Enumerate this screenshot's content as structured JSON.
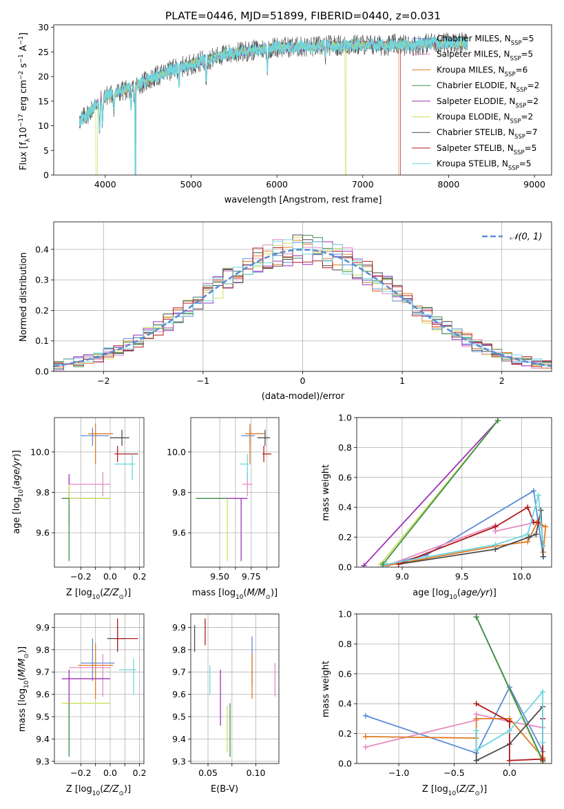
{
  "colors": {
    "Chabrier MILES": "#5b8bd6",
    "Salpeter MILES": "#e68ac0",
    "Kroupa MILES": "#e07b22",
    "Chabrier ELODIE": "#3b8f4a",
    "Salpeter ELODIE": "#9c2fb8",
    "Kroupa ELODIE": "#c9df5a",
    "Chabrier STELIB": "#4b4b4b",
    "Salpeter STELIB": "#b11a1a",
    "Kroupa STELIB": "#6fd6df"
  },
  "chart_data": [
    {
      "id": "spectrum",
      "type": "line",
      "title": "PLATE=0446, MJD=51899, FIBERID=0440, z=0.031",
      "xlabel": "wavelength [Angstrom, rest frame]",
      "ylabel": "Flux [f_λ 10^-17 erg cm^-2 s^-1 A^-1]",
      "xlim": [
        3400,
        9200
      ],
      "ylim": [
        0,
        30.5
      ],
      "xticks": [
        4000,
        5000,
        6000,
        7000,
        8000,
        9000
      ],
      "yticks": [
        0,
        5,
        10,
        15,
        20,
        25,
        30
      ],
      "legend_position": "top-right",
      "legend": [
        "Chabrier MILES, N_SSP=5",
        "Salpeter MILES, N_SSP=5",
        "Kroupa MILES, N_SSP=6",
        "Chabrier ELODIE, N_SSP=2",
        "Salpeter ELODIE, N_SSP=2",
        "Kroupa ELODIE, N_SSP=2",
        "Chabrier STELIB, N_SSP=7",
        "Salpeter STELIB, N_SSP=5",
        "Kroupa STELIB, N_SSP=5"
      ],
      "continuum_x": [
        3700,
        3800,
        3900,
        4000,
        4200,
        4400,
        4600,
        4800,
        5000,
        5200,
        5400,
        5600,
        5800,
        6000,
        6200,
        6400,
        6600,
        6800,
        7000,
        7200,
        7400,
        7600,
        7800,
        8000,
        8200
      ],
      "continuum_y": [
        11,
        12.5,
        14.5,
        16,
        17,
        18.5,
        20,
        21.5,
        22.5,
        23.5,
        24.5,
        25,
        25.5,
        26,
        26,
        26,
        26.3,
        26.3,
        26.5,
        26.3,
        26.5,
        26.3,
        26.8,
        26.8,
        26.8
      ],
      "notes": "Kroupa MILES drops to 0 near 7420 Å; Kroupa ELODIE drops near 3900 and 6800 Å"
    },
    {
      "id": "residuals",
      "type": "histogram",
      "xlabel": "(data-model)/error",
      "ylabel": "Normed distribution",
      "xlim": [
        -2.5,
        2.5
      ],
      "ylim": [
        0,
        0.49
      ],
      "xticks": [
        -2,
        -1,
        0,
        1,
        2
      ],
      "yticks": [
        0,
        0.1,
        0.2,
        0.3,
        0.4
      ],
      "legend": [
        "𝒩(0, 1)"
      ],
      "legend_position": "top-right",
      "bin_width": 0.1
    },
    {
      "id": "z-age",
      "type": "errorbar",
      "xlabel": "Z [log10(Z/Z⊙)]",
      "ylabel": "age  [log10(age/yr)]",
      "xlim": [
        -0.38,
        0.23
      ],
      "ylim": [
        9.43,
        10.17
      ],
      "xticks": [
        -0.2,
        -0.1,
        0.0,
        0.1,
        0.2
      ],
      "xticklabels": [
        "−0.2",
        "",
        "0.0",
        "",
        "0.2"
      ],
      "yticks": [
        9.6,
        9.8,
        10.0
      ],
      "points": [
        {
          "model": "Chabrier MILES",
          "x": -0.12,
          "xerr": [
            0.08,
            0.11
          ],
          "y": 10.08,
          "yerr": [
            0.05,
            0.04
          ]
        },
        {
          "model": "Kroupa MILES",
          "x": -0.1,
          "xerr": [
            0.05,
            0.12
          ],
          "y": 10.09,
          "yerr": [
            0.15,
            0.05
          ]
        },
        {
          "model": "Salpeter MILES",
          "x": -0.05,
          "xerr": [
            0.23,
            0.05
          ],
          "y": 9.84,
          "yerr": [
            0.06,
            0.06
          ]
        },
        {
          "model": "Salpeter ELODIE",
          "x": -0.28,
          "xerr": [
            0.05,
            0.28
          ],
          "y": 9.77,
          "yerr": [
            0.12,
            0.12
          ]
        },
        {
          "model": "Kroupa ELODIE",
          "x": -0.28,
          "xerr": [
            0.05,
            0.28
          ],
          "y": 9.77,
          "yerr": [
            0.07,
            0.07
          ]
        },
        {
          "model": "Chabrier ELODIE",
          "x": -0.28,
          "xerr": [
            0.05,
            0.0
          ],
          "y": 9.77,
          "yerr": [
            0.31,
            0.0
          ]
        },
        {
          "model": "Chabrier STELIB",
          "x": 0.08,
          "xerr": [
            0.08,
            0.05
          ],
          "y": 10.07,
          "yerr": [
            0.04,
            0.04
          ]
        },
        {
          "model": "Salpeter STELIB",
          "x": 0.05,
          "xerr": [
            0.02,
            0.14
          ],
          "y": 9.99,
          "yerr": [
            0.04,
            0.04
          ]
        },
        {
          "model": "Kroupa STELIB",
          "x": 0.15,
          "xerr": [
            0.12,
            0.02
          ],
          "y": 9.94,
          "yerr": [
            0.08,
            0.05
          ]
        }
      ]
    },
    {
      "id": "mass-age",
      "type": "errorbar",
      "xlabel": "mass [log10(M/M⊙)]",
      "ylabel": "",
      "xlim": [
        9.27,
        9.97
      ],
      "ylim": [
        9.43,
        10.17
      ],
      "xticks": [
        9.5,
        9.625,
        9.75,
        9.875
      ],
      "xticklabels": [
        "9.50",
        "",
        "9.75",
        ""
      ],
      "yticks": [
        9.6,
        9.8,
        10.0
      ],
      "points": [
        {
          "model": "Chabrier MILES",
          "x": 9.74,
          "xerr": [
            0.07,
            0.04
          ],
          "y": 10.08,
          "yerr": [
            0.05,
            0.04
          ]
        },
        {
          "model": "Kroupa MILES",
          "x": 9.74,
          "xerr": [
            0.04,
            0.12
          ],
          "y": 10.09,
          "yerr": [
            0.15,
            0.05
          ]
        },
        {
          "model": "Salpeter MILES",
          "x": 9.72,
          "xerr": [
            0.04,
            0.04
          ],
          "y": 9.84,
          "yerr": [
            0.06,
            0.06
          ]
        },
        {
          "model": "Salpeter ELODIE",
          "x": 9.67,
          "xerr": [
            0.17,
            0.05
          ],
          "y": 9.77,
          "yerr": [
            0.31,
            0.0
          ]
        },
        {
          "model": "Kroupa ELODIE",
          "x": 9.56,
          "xerr": [
            0.25,
            0.0
          ],
          "y": 9.77,
          "yerr": [
            0.31,
            0.0
          ]
        },
        {
          "model": "Chabrier ELODIE",
          "x": 9.56,
          "xerr": [
            0.25,
            0.0
          ],
          "y": 9.77,
          "yerr": [
            0.0,
            0.0
          ]
        },
        {
          "model": "Chabrier STELIB",
          "x": 9.86,
          "xerr": [
            0.06,
            0.04
          ],
          "y": 10.07,
          "yerr": [
            0.04,
            0.04
          ]
        },
        {
          "model": "Salpeter STELIB",
          "x": 9.85,
          "xerr": [
            0.01,
            0.06
          ],
          "y": 9.99,
          "yerr": [
            0.04,
            0.04
          ]
        },
        {
          "model": "Kroupa STELIB",
          "x": 9.72,
          "xerr": [
            0.06,
            0.01
          ],
          "y": 9.94,
          "yerr": [
            0.08,
            0.05
          ]
        }
      ]
    },
    {
      "id": "age-weight",
      "type": "line",
      "xlabel": "age  [log10(age/yr)]",
      "ylabel": "mass weight",
      "xlim": [
        8.62,
        10.25
      ],
      "ylim": [
        0,
        1.0
      ],
      "xticks": [
        9.0,
        9.5,
        10.0
      ],
      "yticks": [
        0,
        0.2,
        0.4,
        0.6,
        0.8,
        1.0
      ],
      "series": [
        {
          "model": "Chabrier MILES",
          "x": [
            8.84,
            9.2,
            10.1,
            10.18
          ],
          "y": [
            0.01,
            0.08,
            0.51,
            0.07
          ]
        },
        {
          "model": "Salpeter MILES",
          "x": [
            8.87,
            9.78,
            9.78,
            10.12,
            10.16
          ],
          "y": [
            0.01,
            0.28,
            0.24,
            0.3,
            0.28
          ]
        },
        {
          "model": "Kroupa MILES",
          "x": [
            8.87,
            9.78,
            10.05,
            10.13,
            10.2,
            10.18
          ],
          "y": [
            0.01,
            0.14,
            0.17,
            0.3,
            0.27,
            0.1
          ]
        },
        {
          "model": "Salpeter ELODIE",
          "x": [
            8.68,
            9.8
          ],
          "y": [
            0.01,
            0.98
          ]
        },
        {
          "model": "Kroupa ELODIE",
          "x": [
            8.82,
            9.8
          ],
          "y": [
            0.02,
            0.98
          ]
        },
        {
          "model": "Chabrier ELODIE",
          "x": [
            8.84,
            9.8
          ],
          "y": [
            0.02,
            0.98
          ]
        },
        {
          "model": "Chabrier STELIB",
          "x": [
            8.97,
            9.78,
            10.06,
            10.12,
            10.16,
            10.18
          ],
          "y": [
            0.02,
            0.12,
            0.2,
            0.22,
            0.38,
            0.07
          ]
        },
        {
          "model": "Salpeter STELIB",
          "x": [
            8.97,
            9.78,
            10.05,
            10.1,
            10.14
          ],
          "y": [
            0.02,
            0.27,
            0.4,
            0.3,
            0.3
          ]
        },
        {
          "model": "Kroupa STELIB",
          "x": [
            8.87,
            9.78,
            10.05,
            10.14,
            10.18
          ],
          "y": [
            0.02,
            0.15,
            0.22,
            0.48,
            0.14
          ]
        }
      ]
    },
    {
      "id": "z-mass",
      "type": "errorbar",
      "xlabel": "Z [log10(Z/Z⊙)]",
      "ylabel": "mass [log10(M/M⊙)]",
      "xlim": [
        -0.38,
        0.23
      ],
      "ylim": [
        9.29,
        9.96
      ],
      "xticks": [
        -0.2,
        -0.1,
        0.0,
        0.1,
        0.2
      ],
      "xticklabels": [
        "−0.2",
        "",
        "0.0",
        "",
        "0.2"
      ],
      "yticks": [
        9.3,
        9.4,
        9.5,
        9.6,
        9.7,
        9.8,
        9.9
      ],
      "points": [
        {
          "model": "Chabrier MILES",
          "x": -0.12,
          "xerr": [
            0.08,
            0.15
          ],
          "y": 9.74,
          "yerr": [
            0.08,
            0.11
          ]
        },
        {
          "model": "Kroupa MILES",
          "x": -0.1,
          "xerr": [
            0.12,
            0.12
          ],
          "y": 9.73,
          "yerr": [
            0.15,
            0.1
          ]
        },
        {
          "model": "Salpeter MILES",
          "x": -0.05,
          "xerr": [
            0.23,
            0.05
          ],
          "y": 9.72,
          "yerr": [
            0.13,
            0.06
          ]
        },
        {
          "model": "Salpeter ELODIE",
          "x": -0.28,
          "xerr": [
            0.05,
            0.28
          ],
          "y": 9.67,
          "yerr": [
            0.2,
            0.04
          ]
        },
        {
          "model": "Kroupa ELODIE",
          "x": -0.28,
          "xerr": [
            0.05,
            0.28
          ],
          "y": 9.56,
          "yerr": [
            0.19,
            0.0
          ]
        },
        {
          "model": "Chabrier ELODIE",
          "x": -0.28,
          "xerr": [
            0.0,
            0.0
          ],
          "y": 9.56,
          "yerr": [
            0.24,
            0.0
          ]
        },
        {
          "model": "Chabrier STELIB",
          "x": 0.05,
          "xerr": [
            0.07,
            0.05
          ],
          "y": 9.85,
          "yerr": [
            0.06,
            0.05
          ]
        },
        {
          "model": "Salpeter STELIB",
          "x": 0.05,
          "xerr": [
            0.02,
            0.14
          ],
          "y": 9.85,
          "yerr": [
            0.05,
            0.09
          ]
        },
        {
          "model": "Kroupa STELIB",
          "x": 0.16,
          "xerr": [
            0.1,
            0.02
          ],
          "y": 9.71,
          "yerr": [
            0.11,
            0.05
          ]
        }
      ]
    },
    {
      "id": "ebv",
      "type": "errorbar",
      "xlabel": "E(B-V)",
      "ylabel": "",
      "xlim": [
        0.032,
        0.124
      ],
      "ylim": [
        9.29,
        9.96
      ],
      "xticks": [
        0.05,
        0.075,
        0.1
      ],
      "xticklabels": [
        "0.05",
        "",
        "0.10"
      ],
      "yticks": [
        9.3,
        9.4,
        9.5,
        9.6,
        9.7,
        9.8,
        9.9
      ],
      "points": [
        {
          "model": "Chabrier STELIB",
          "x": 0.036,
          "xerr": [
            0,
            0
          ],
          "y": 9.85,
          "yerr": [
            0.06,
            0.06
          ]
        },
        {
          "model": "Salpeter STELIB",
          "x": 0.047,
          "xerr": [
            0,
            0
          ],
          "y": 9.88,
          "yerr": [
            0.06,
            0.06
          ]
        },
        {
          "model": "Kroupa STELIB",
          "x": 0.052,
          "xerr": [
            0,
            0
          ],
          "y": 9.67,
          "yerr": [
            0.07,
            0.06
          ]
        },
        {
          "model": "Salpeter ELODIE",
          "x": 0.063,
          "xerr": [
            0,
            0
          ],
          "y": 9.59,
          "yerr": [
            0.13,
            0.12
          ]
        },
        {
          "model": "Kroupa ELODIE",
          "x": 0.07,
          "xerr": [
            0,
            0
          ],
          "y": 9.44,
          "yerr": [
            0.1,
            0.11
          ]
        },
        {
          "model": "Chabrier ELODIE",
          "x": 0.073,
          "xerr": [
            0,
            0
          ],
          "y": 9.44,
          "yerr": [
            0.12,
            0.12
          ]
        },
        {
          "model": "Chabrier MILES",
          "x": 0.096,
          "xerr": [
            0,
            0
          ],
          "y": 9.76,
          "yerr": [
            0.12,
            0.1
          ]
        },
        {
          "model": "Kroupa MILES",
          "x": 0.096,
          "xerr": [
            0,
            0
          ],
          "y": 9.69,
          "yerr": [
            0.11,
            0.09
          ]
        },
        {
          "model": "Salpeter MILES",
          "x": 0.12,
          "xerr": [
            0,
            0
          ],
          "y": 9.66,
          "yerr": [
            0.07,
            0.08
          ]
        }
      ]
    },
    {
      "id": "z-weight",
      "type": "line",
      "xlabel": "Z [log10(Z/Z⊙)]",
      "ylabel": "mass weight",
      "xlim": [
        -1.38,
        0.38
      ],
      "ylim": [
        0,
        1.0
      ],
      "xticks": [
        -1.0,
        -0.5,
        0.0
      ],
      "xticklabels": [
        "−1.0",
        "−0.5",
        "0.0"
      ],
      "yticks": [
        0,
        0.2,
        0.4,
        0.6,
        0.8,
        1.0
      ],
      "series": [
        {
          "model": "Chabrier MILES",
          "x": [
            -1.3,
            -0.3,
            0.0,
            0.3
          ],
          "y": [
            0.32,
            0.07,
            0.51,
            0.08
          ]
        },
        {
          "model": "Salpeter MILES",
          "x": [
            -1.3,
            -0.3,
            -0.3,
            0.0,
            0.3
          ],
          "y": [
            0.11,
            0.29,
            0.33,
            0.28,
            0.24
          ]
        },
        {
          "model": "Kroupa MILES",
          "x": [
            -1.3,
            -0.3,
            -0.3,
            0.0,
            0.3,
            0.3
          ],
          "y": [
            0.18,
            0.17,
            0.3,
            0.3,
            0.04,
            0.01
          ]
        },
        {
          "model": "Salpeter ELODIE",
          "x": [
            -0.3,
            0.3
          ],
          "y": [
            0.98,
            0.01
          ]
        },
        {
          "model": "Kroupa ELODIE",
          "x": [
            -0.3,
            0.3
          ],
          "y": [
            0.98,
            0.01
          ]
        },
        {
          "model": "Chabrier ELODIE",
          "x": [
            -0.3,
            0.3
          ],
          "y": [
            0.98,
            0.02
          ]
        },
        {
          "model": "Chabrier STELIB",
          "x": [
            -0.3,
            -0.3,
            0.0,
            0.3,
            0.3
          ],
          "y": [
            0.22,
            0.02,
            0.13,
            0.38,
            0.02
          ]
        },
        {
          "model": "Salpeter STELIB",
          "x": [
            -0.3,
            0.0,
            0.0,
            0.3,
            0.3
          ],
          "y": [
            0.4,
            0.28,
            0.02,
            0.03,
            0.3
          ]
        },
        {
          "model": "Kroupa STELIB",
          "x": [
            -0.3,
            -0.3,
            0.0,
            0.3,
            0.3
          ],
          "y": [
            0.22,
            0.09,
            0.22,
            0.48,
            0.14
          ]
        }
      ]
    }
  ]
}
